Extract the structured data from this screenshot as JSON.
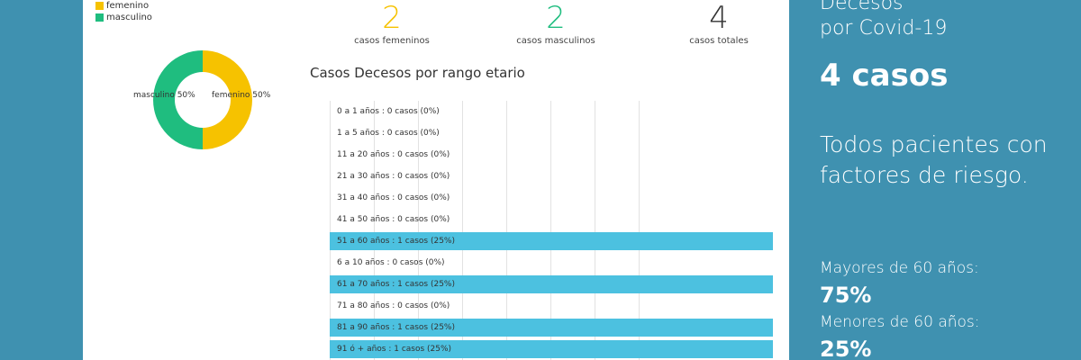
{
  "legend": [
    {
      "label": "femenino",
      "color": "#f6c200"
    },
    {
      "label": "masculino",
      "color": "#1fbd7f"
    }
  ],
  "donut": {
    "slices": [
      {
        "label": "femenino 50%",
        "value": 50,
        "color": "#f6c200"
      },
      {
        "label": "masculino 50%",
        "value": 50,
        "color": "#1fbd7f"
      }
    ]
  },
  "stats": [
    {
      "value": "2",
      "label": "casos femeninos",
      "color": "#f6c200"
    },
    {
      "value": "2",
      "label": "casos masculinos",
      "color": "#1fbd7f"
    },
    {
      "value": "4",
      "label": "casos totales",
      "color": "#333333"
    }
  ],
  "chart_data": {
    "type": "bar",
    "orientation": "horizontal",
    "title": "Casos Decesos por rango etario",
    "total": 4,
    "categories": [
      "0 a 1 años",
      "1 a 5 años",
      "11 a 20 años",
      "21 a 30 años",
      "31 a 40 años",
      "41 a 50 años",
      "51 a 60 años",
      "6 a 10 años",
      "61 a 70 años",
      "71 a 80 años",
      "81 a 90 años",
      "91 ó + años"
    ],
    "values": [
      0,
      0,
      0,
      0,
      0,
      0,
      1,
      0,
      1,
      0,
      1,
      1
    ],
    "labels": [
      "0 a 1 años : 0 casos (0%)",
      "1 a 5 años : 0 casos (0%)",
      "11 a 20 años : 0 casos (0%)",
      "21 a 30 años : 0 casos (0%)",
      "31 a 40 años : 0 casos (0%)",
      "41 a 50 años : 0 casos (0%)",
      "51 a 60 años : 1 casos (25%)",
      "6 a 10 años : 0 casos (0%)",
      "61 a 70 años : 1 casos (25%)",
      "71 a 80 años : 0 casos (0%)",
      "81 a 90 años : 1 casos (25%)",
      "91 ó + años : 1 casos (25%)"
    ],
    "xlim": [
      0,
      1
    ],
    "bar_color": "#4cc1e0",
    "grid": true
  },
  "side": {
    "title_line1": "Decesos",
    "title_line2": "por Covid-19",
    "total": "4 casos",
    "note": "Todos pacientes con factores de riesgo.",
    "over60_label": "Mayores de 60 años:",
    "over60_value": "75%",
    "under60_label": "Menores de 60 años:",
    "under60_value": "25%"
  }
}
